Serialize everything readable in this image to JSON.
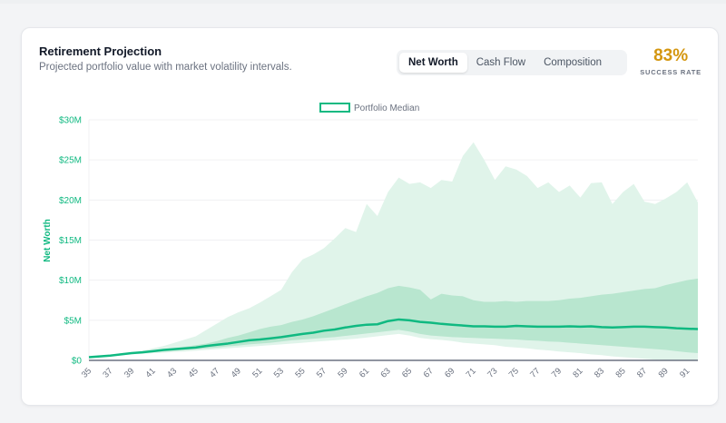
{
  "card": {
    "title": "Retirement Projection",
    "subtitle": "Projected portfolio value with market volatility intervals.",
    "tabs": [
      {
        "label": "Net Worth",
        "active": true
      },
      {
        "label": "Cash Flow",
        "active": false
      },
      {
        "label": "Composition",
        "active": false
      }
    ],
    "success_rate": {
      "value": "83%",
      "label": "SUCCESS RATE",
      "color": "#d4960f"
    }
  },
  "chart_data": {
    "type": "area",
    "ylabel": "Net Worth",
    "xlabel": "",
    "ylim": [
      0,
      30
    ],
    "y_unit": "$M",
    "yticks": [
      "$0",
      "$5M",
      "$10M",
      "$15M",
      "$20M",
      "$25M",
      "$30M"
    ],
    "xticks": [
      "35",
      "37",
      "39",
      "41",
      "43",
      "45",
      "47",
      "49",
      "51",
      "53",
      "55",
      "57",
      "59",
      "61",
      "63",
      "65",
      "67",
      "69",
      "71",
      "73",
      "75",
      "77",
      "79",
      "81",
      "83",
      "85",
      "87",
      "89",
      "91"
    ],
    "grid": true,
    "legend": {
      "placement": "top-center",
      "entries": [
        "Portfolio Median"
      ]
    },
    "colors": {
      "median": "#10b981",
      "outer_band": "#e0f4ea",
      "inner_band": "#b8e6cf",
      "axis": "#6b7280"
    },
    "x": [
      35,
      36,
      37,
      38,
      39,
      40,
      41,
      42,
      43,
      44,
      45,
      46,
      47,
      48,
      49,
      50,
      51,
      52,
      53,
      54,
      55,
      56,
      57,
      58,
      59,
      60,
      61,
      62,
      63,
      64,
      65,
      66,
      67,
      68,
      69,
      70,
      71,
      72,
      73,
      74,
      75,
      76,
      77,
      78,
      79,
      80,
      81,
      82,
      83,
      84,
      85,
      86,
      87,
      88,
      89,
      90,
      91,
      92
    ],
    "series": [
      {
        "name": "Portfolio Median",
        "role": "median",
        "values": [
          0.4,
          0.5,
          0.6,
          0.75,
          0.9,
          1.0,
          1.15,
          1.3,
          1.4,
          1.5,
          1.6,
          1.8,
          1.95,
          2.1,
          2.3,
          2.5,
          2.6,
          2.75,
          2.9,
          3.1,
          3.3,
          3.45,
          3.7,
          3.85,
          4.1,
          4.3,
          4.45,
          4.5,
          4.9,
          5.1,
          5.0,
          4.8,
          4.7,
          4.55,
          4.45,
          4.35,
          4.25,
          4.25,
          4.2,
          4.2,
          4.3,
          4.25,
          4.2,
          4.2,
          4.2,
          4.25,
          4.2,
          4.25,
          4.15,
          4.1,
          4.15,
          4.2,
          4.2,
          4.15,
          4.1,
          4.0,
          3.95,
          3.9
        ]
      },
      {
        "role": "outer_upper",
        "values": [
          0.4,
          0.5,
          0.7,
          0.9,
          1.0,
          1.2,
          1.5,
          1.8,
          2.2,
          2.6,
          3.0,
          3.8,
          4.6,
          5.4,
          6.0,
          6.5,
          7.2,
          8.0,
          8.8,
          11,
          12.6,
          13.2,
          14,
          15.2,
          16.5,
          16,
          19.5,
          18,
          21,
          22.8,
          22,
          22.2,
          21.5,
          22.5,
          22.3,
          25.5,
          27.2,
          25,
          22.5,
          24.2,
          23.8,
          23,
          21.5,
          22.2,
          21,
          21.8,
          20.3,
          22.1,
          22.2,
          19.5,
          21,
          22,
          19.8,
          19.5,
          20.2,
          21,
          22.2,
          19.7
        ]
      },
      {
        "role": "inner_upper",
        "values": [
          0.4,
          0.5,
          0.65,
          0.8,
          0.95,
          1.1,
          1.25,
          1.4,
          1.55,
          1.7,
          1.9,
          2.1,
          2.4,
          2.8,
          3.1,
          3.5,
          3.9,
          4.2,
          4.4,
          4.8,
          5.1,
          5.5,
          6.0,
          6.5,
          7.0,
          7.5,
          8.0,
          8.4,
          9.0,
          9.3,
          9.1,
          8.8,
          7.6,
          8.3,
          8.1,
          8.0,
          7.5,
          7.3,
          7.3,
          7.4,
          7.3,
          7.4,
          7.4,
          7.4,
          7.5,
          7.7,
          7.8,
          8.0,
          8.2,
          8.3,
          8.5,
          8.7,
          8.9,
          9.0,
          9.4,
          9.7,
          10.0,
          10.2
        ]
      },
      {
        "role": "inner_lower",
        "values": [
          0.4,
          0.5,
          0.6,
          0.7,
          0.8,
          0.9,
          1.0,
          1.1,
          1.2,
          1.3,
          1.4,
          1.5,
          1.6,
          1.75,
          1.85,
          2.0,
          2.1,
          2.2,
          2.35,
          2.5,
          2.6,
          2.7,
          2.8,
          2.9,
          3.05,
          3.2,
          3.35,
          3.5,
          3.65,
          3.8,
          3.6,
          3.3,
          3.1,
          3.0,
          2.9,
          2.85,
          2.8,
          2.75,
          2.7,
          2.65,
          2.6,
          2.5,
          2.45,
          2.35,
          2.3,
          2.2,
          2.1,
          2.0,
          1.9,
          1.8,
          1.7,
          1.6,
          1.5,
          1.4,
          1.3,
          1.15,
          1.0,
          0.9
        ]
      },
      {
        "role": "outer_lower",
        "values": [
          0.4,
          0.45,
          0.55,
          0.65,
          0.75,
          0.8,
          0.9,
          0.95,
          1.05,
          1.1,
          1.2,
          1.3,
          1.4,
          1.5,
          1.6,
          1.7,
          1.8,
          1.9,
          2.0,
          2.1,
          2.2,
          2.3,
          2.4,
          2.5,
          2.6,
          2.7,
          2.85,
          3.0,
          3.15,
          3.3,
          3.1,
          2.8,
          2.65,
          2.55,
          2.4,
          2.2,
          2.1,
          2.0,
          1.9,
          1.7,
          1.6,
          1.5,
          1.35,
          1.25,
          1.1,
          1.0,
          0.9,
          0.75,
          0.65,
          0.5,
          0.4,
          0.3,
          0.2,
          0.1,
          0.05,
          0,
          0,
          0
        ]
      }
    ]
  }
}
